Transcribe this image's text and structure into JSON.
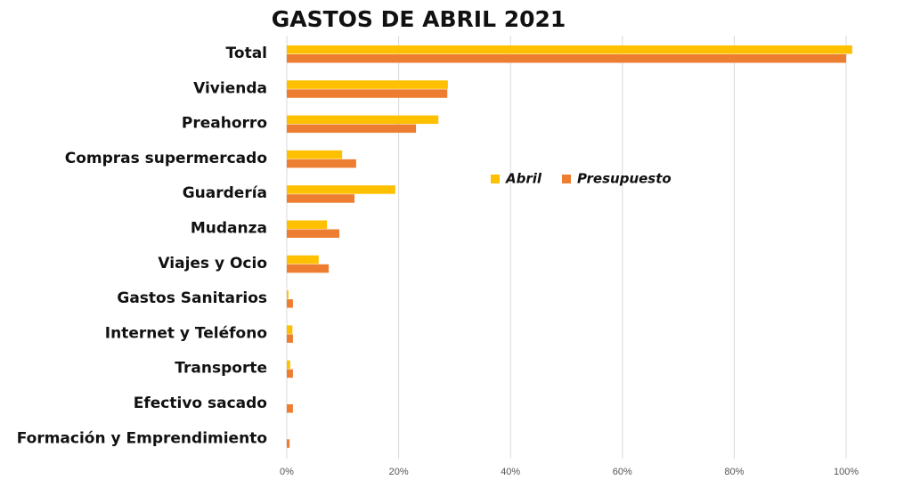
{
  "chart_data": {
    "type": "hbar",
    "title": "GASTOS DE ABRIL 2021",
    "categories": [
      "Total",
      "Vivienda",
      "Preahorro",
      "Compras supermercado",
      "Guardería",
      "Mudanza",
      "Viajes y Ocio",
      "Gastos Sanitarios",
      "Internet y Teléfono",
      "Transporte",
      "Efectivo sacado",
      "Formación y Emprendimiento"
    ],
    "series": [
      {
        "name": "Abril",
        "color": "#FFC000",
        "values": [
          101.1,
          28.8,
          27.1,
          9.9,
          19.4,
          7.2,
          5.7,
          0.3,
          1.0,
          0.6,
          0,
          0
        ]
      },
      {
        "name": "Presupuesto",
        "color": "#ED7D31",
        "values": [
          100,
          28.7,
          23.1,
          12.4,
          12.1,
          9.4,
          7.5,
          1.1,
          1.1,
          1.1,
          1.1,
          0.5
        ]
      }
    ],
    "xlim": [
      0,
      102
    ],
    "xticks": [
      {
        "value": 0,
        "label": "0%"
      },
      {
        "value": 20,
        "label": "20%"
      },
      {
        "value": 40,
        "label": "40%"
      },
      {
        "value": 60,
        "label": "60%"
      },
      {
        "value": 80,
        "label": "80%"
      },
      {
        "value": 100,
        "label": "100%"
      }
    ],
    "grid": true
  }
}
